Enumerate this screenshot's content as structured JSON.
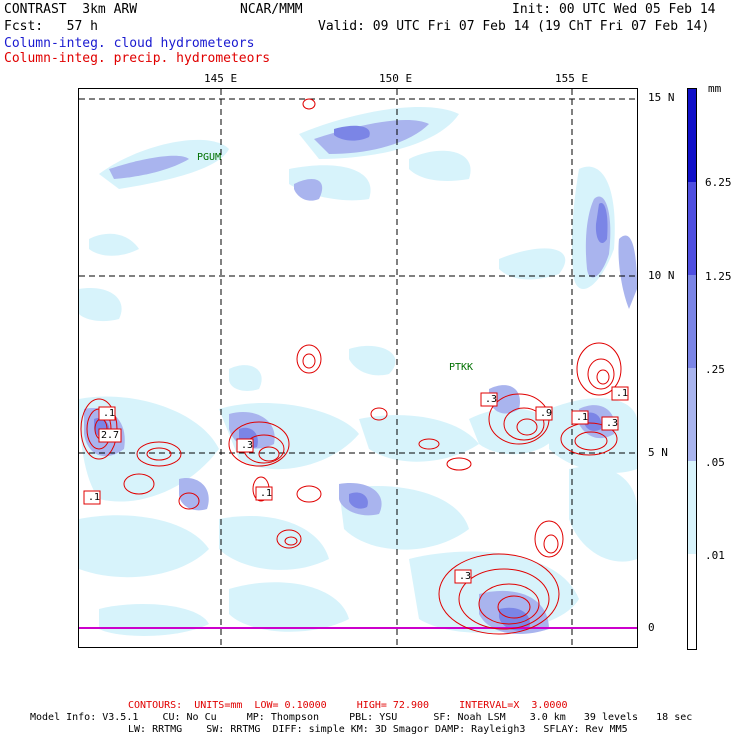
{
  "header": {
    "line1_left": "CONTRAST  3km ARW",
    "line1_center": "NCAR/MMM",
    "line1_right": "Init: 00 UTC Wed 05 Feb 14",
    "line2_left": "Fcst:   57 h",
    "line2_right": "Valid: 09 UTC Fri 07 Feb 14 (19 ChT Fri 07 Feb 14)",
    "line3": "Column-integ. cloud hydrometeors",
    "line4": "Column-integ. precip. hydrometeors"
  },
  "map": {
    "lon_labels": [
      "145 E",
      "150 E",
      "155 E"
    ],
    "lat_labels": [
      "15 N",
      "10 N",
      "5 N",
      "0"
    ],
    "stations": [
      "PGUM",
      "PTKK"
    ],
    "contour_labels": [
      ".1",
      "2.7",
      ".1",
      ".3",
      ".1",
      ".3",
      ".9",
      ".1",
      ".3",
      ".1",
      ".3"
    ],
    "colors": {
      "shade_01": "#d7f3fb",
      "shade_05": "#a9b4ee",
      "shade_25": "#7b85e6",
      "shade_125": "#4f4fe0",
      "shade_625": "#1010c8",
      "contour": "#e00000",
      "grid": "#000000",
      "equator_line": "#cc00cc"
    }
  },
  "colorbar": {
    "unit": "mm",
    "ticks": [
      "6.25",
      "1.25",
      ".25",
      ".05",
      ".01"
    ],
    "colors": [
      "#1010c8",
      "#4f4fe0",
      "#7b85e6",
      "#a9b4ee",
      "#d7f3fb",
      "#ffffff"
    ]
  },
  "footer": {
    "contours": "CONTOURS:  UNITS=mm  LOW= 0.10000     HIGH= 72.900     INTERVAL=X  3.0000",
    "model_line1": "Model Info: V3.5.1    CU: No Cu     MP: Thompson     PBL: YSU      SF: Noah LSM    3.0 km   39 levels   18 sec",
    "model_line2": "LW: RRTMG    SW: RRTMG  DIFF: simple KM: 3D Smagor DAMP: Rayleigh3   SFLAY: Rev MM5"
  }
}
